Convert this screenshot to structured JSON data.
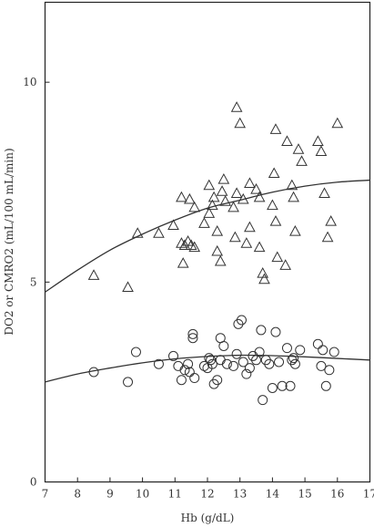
{
  "chart_data": {
    "type": "scatter",
    "xlabel": "Hb (g/dL)",
    "ylabel": "DO2 or CMRO2 (mL/100 mL/min)",
    "xlim": [
      7,
      17
    ],
    "ylim": [
      0,
      12
    ],
    "xticks": [
      7,
      8,
      9,
      10,
      11,
      12,
      13,
      14,
      15,
      16,
      17
    ],
    "yticks": [
      0,
      5,
      10
    ],
    "grid": false,
    "legend": "none",
    "series": [
      {
        "marker": "triangle-open",
        "color": "#333333",
        "points": [
          [
            8.5,
            5.15
          ],
          [
            9.55,
            4.85
          ],
          [
            9.85,
            6.2
          ],
          [
            10.5,
            6.2
          ],
          [
            10.95,
            6.4
          ],
          [
            11.2,
            5.95
          ],
          [
            11.25,
            5.45
          ],
          [
            11.3,
            5.9
          ],
          [
            11.2,
            7.1
          ],
          [
            11.45,
            7.05
          ],
          [
            11.4,
            6.0
          ],
          [
            11.5,
            5.9
          ],
          [
            11.6,
            5.85
          ],
          [
            11.6,
            6.85
          ],
          [
            11.9,
            6.45
          ],
          [
            12.05,
            7.4
          ],
          [
            12.05,
            6.7
          ],
          [
            12.15,
            6.9
          ],
          [
            12.2,
            7.1
          ],
          [
            12.3,
            6.25
          ],
          [
            12.3,
            5.75
          ],
          [
            12.4,
            5.5
          ],
          [
            12.45,
            7.25
          ],
          [
            12.5,
            7.55
          ],
          [
            12.55,
            7.0
          ],
          [
            12.8,
            6.85
          ],
          [
            12.85,
            6.1
          ],
          [
            12.9,
            9.35
          ],
          [
            12.9,
            7.2
          ],
          [
            13.0,
            8.95
          ],
          [
            13.1,
            7.05
          ],
          [
            13.2,
            5.95
          ],
          [
            13.3,
            7.45
          ],
          [
            13.3,
            6.35
          ],
          [
            13.5,
            7.3
          ],
          [
            13.6,
            7.1
          ],
          [
            13.6,
            5.85
          ],
          [
            13.7,
            5.2
          ],
          [
            13.75,
            5.05
          ],
          [
            14.0,
            6.9
          ],
          [
            14.05,
            7.7
          ],
          [
            14.1,
            8.8
          ],
          [
            14.1,
            6.5
          ],
          [
            14.15,
            5.6
          ],
          [
            14.4,
            5.4
          ],
          [
            14.45,
            8.5
          ],
          [
            14.6,
            7.4
          ],
          [
            14.65,
            7.1
          ],
          [
            14.7,
            6.25
          ],
          [
            14.8,
            8.3
          ],
          [
            14.9,
            8.0
          ],
          [
            15.4,
            8.5
          ],
          [
            15.5,
            8.25
          ],
          [
            15.6,
            7.2
          ],
          [
            15.7,
            6.1
          ],
          [
            15.8,
            6.5
          ],
          [
            16.0,
            8.95
          ]
        ]
      },
      {
        "marker": "circle-open",
        "color": "#333333",
        "points": [
          [
            8.5,
            2.75
          ],
          [
            9.55,
            2.5
          ],
          [
            9.8,
            3.25
          ],
          [
            10.5,
            2.95
          ],
          [
            10.95,
            3.15
          ],
          [
            11.1,
            2.9
          ],
          [
            11.2,
            2.55
          ],
          [
            11.3,
            2.8
          ],
          [
            11.4,
            2.95
          ],
          [
            11.45,
            2.75
          ],
          [
            11.55,
            3.7
          ],
          [
            11.55,
            3.6
          ],
          [
            11.6,
            2.6
          ],
          [
            11.9,
            2.9
          ],
          [
            12.0,
            2.85
          ],
          [
            12.05,
            3.1
          ],
          [
            12.1,
            3.05
          ],
          [
            12.15,
            2.95
          ],
          [
            12.2,
            2.45
          ],
          [
            12.3,
            2.55
          ],
          [
            12.4,
            3.05
          ],
          [
            12.4,
            3.6
          ],
          [
            12.5,
            3.4
          ],
          [
            12.6,
            2.95
          ],
          [
            12.8,
            2.9
          ],
          [
            12.9,
            3.2
          ],
          [
            12.95,
            3.95
          ],
          [
            13.05,
            4.05
          ],
          [
            13.1,
            3.0
          ],
          [
            13.2,
            2.7
          ],
          [
            13.3,
            2.85
          ],
          [
            13.4,
            3.15
          ],
          [
            13.5,
            3.05
          ],
          [
            13.6,
            3.25
          ],
          [
            13.65,
            3.8
          ],
          [
            13.7,
            2.05
          ],
          [
            13.8,
            3.05
          ],
          [
            13.9,
            2.95
          ],
          [
            14.0,
            2.35
          ],
          [
            14.1,
            3.75
          ],
          [
            14.2,
            3.0
          ],
          [
            14.3,
            2.4
          ],
          [
            14.45,
            3.35
          ],
          [
            14.55,
            2.4
          ],
          [
            14.6,
            3.05
          ],
          [
            14.65,
            3.1
          ],
          [
            14.7,
            2.95
          ],
          [
            14.85,
            3.3
          ],
          [
            15.4,
            3.45
          ],
          [
            15.5,
            2.9
          ],
          [
            15.55,
            3.3
          ],
          [
            15.65,
            2.4
          ],
          [
            15.75,
            2.8
          ],
          [
            15.9,
            3.25
          ]
        ]
      }
    ],
    "fit_curves": [
      {
        "x": [
          7,
          8,
          9,
          10,
          11,
          12,
          13,
          14,
          15,
          16,
          17
        ],
        "y": [
          4.75,
          5.3,
          5.8,
          6.2,
          6.55,
          6.85,
          7.05,
          7.25,
          7.4,
          7.5,
          7.55
        ]
      },
      {
        "x": [
          7,
          8,
          9,
          10,
          11,
          12,
          13,
          14,
          15,
          16,
          17
        ],
        "y": [
          2.5,
          2.7,
          2.85,
          2.98,
          3.08,
          3.14,
          3.17,
          3.16,
          3.13,
          3.09,
          3.05
        ]
      }
    ]
  }
}
